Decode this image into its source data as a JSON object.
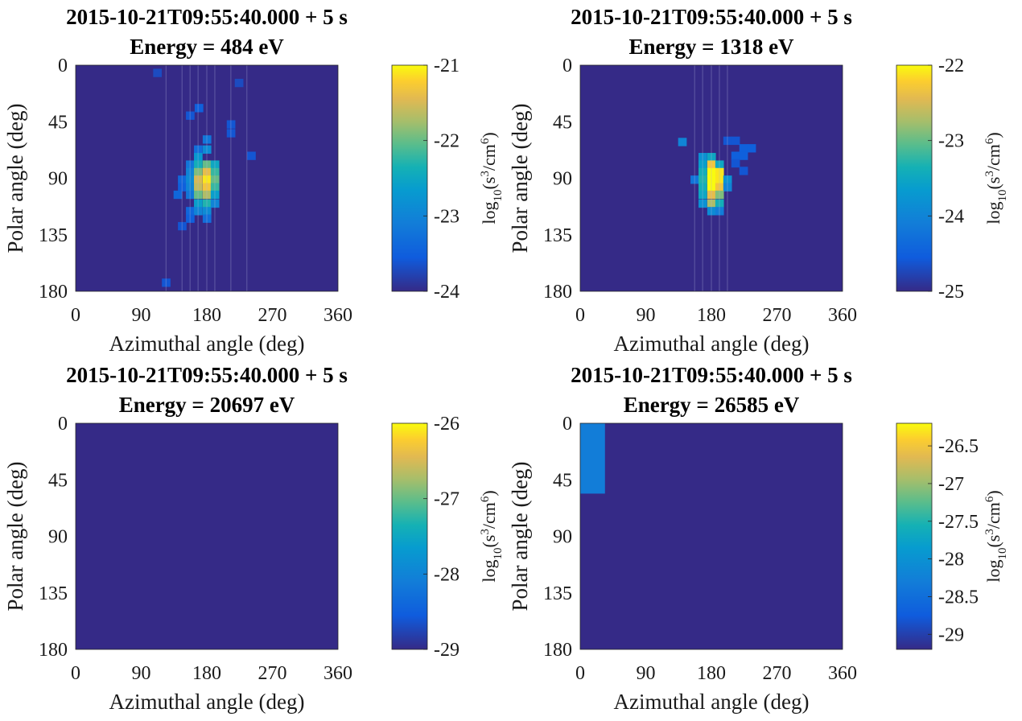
{
  "chart_data": [
    {
      "type": "heatmap",
      "title": "2015-10-21T09:55:40.000 + 5 s",
      "subtitle": "Energy = 484 eV",
      "xlabel": "Azimuthal angle (deg)",
      "ylabel": "Polar angle (deg)",
      "xlim": [
        0,
        360
      ],
      "ylim": [
        0,
        180
      ],
      "xticks": [
        "0",
        "90",
        "180",
        "270",
        "360"
      ],
      "yticks": [
        "0",
        "45",
        "90",
        "135",
        "180"
      ],
      "colorbar": {
        "label_base": "log",
        "label_sub": "10",
        "label_mid": "(s",
        "label_sup1": "3",
        "label_mid2": "/cm",
        "label_sup2": "6",
        "label_end": ")",
        "min": -24,
        "max": -21,
        "ticks": [
          "-21",
          "-22",
          "-23",
          "-24"
        ]
      },
      "background_value": -24,
      "cells": [
        {
          "az": 112,
          "pol": 6,
          "value": -23.7
        },
        {
          "az": 157,
          "pol": 40,
          "value": -23.6
        },
        {
          "az": 169,
          "pol": 34,
          "value": -23.5
        },
        {
          "az": 180,
          "pol": 59,
          "value": -23.2
        },
        {
          "az": 168,
          "pol": 67,
          "value": -23.3
        },
        {
          "az": 168,
          "pol": 73,
          "value": -22.7
        },
        {
          "az": 180,
          "pol": 67,
          "value": -22.9
        },
        {
          "az": 157,
          "pol": 79,
          "value": -23.2
        },
        {
          "az": 168,
          "pol": 79,
          "value": -22.4
        },
        {
          "az": 180,
          "pol": 79,
          "value": -22.0
        },
        {
          "az": 191,
          "pol": 79,
          "value": -22.5
        },
        {
          "az": 157,
          "pol": 85,
          "value": -23.0
        },
        {
          "az": 168,
          "pol": 85,
          "value": -21.9
        },
        {
          "az": 180,
          "pol": 85,
          "value": -21.4
        },
        {
          "az": 191,
          "pol": 85,
          "value": -22.2
        },
        {
          "az": 146,
          "pol": 91,
          "value": -23.4
        },
        {
          "az": 157,
          "pol": 91,
          "value": -22.9
        },
        {
          "az": 168,
          "pol": 91,
          "value": -21.5
        },
        {
          "az": 180,
          "pol": 91,
          "value": -21.1
        },
        {
          "az": 191,
          "pol": 91,
          "value": -22.0
        },
        {
          "az": 146,
          "pol": 97,
          "value": -23.5
        },
        {
          "az": 157,
          "pol": 97,
          "value": -23.0
        },
        {
          "az": 168,
          "pol": 97,
          "value": -21.6
        },
        {
          "az": 180,
          "pol": 97,
          "value": -21.3
        },
        {
          "az": 191,
          "pol": 97,
          "value": -22.2
        },
        {
          "az": 140,
          "pol": 103,
          "value": -23.4
        },
        {
          "az": 157,
          "pol": 103,
          "value": -23.2
        },
        {
          "az": 168,
          "pol": 103,
          "value": -22.0
        },
        {
          "az": 180,
          "pol": 103,
          "value": -21.7
        },
        {
          "az": 191,
          "pol": 103,
          "value": -22.6
        },
        {
          "az": 168,
          "pol": 110,
          "value": -22.6
        },
        {
          "az": 180,
          "pol": 110,
          "value": -22.3
        },
        {
          "az": 191,
          "pol": 110,
          "value": -23.0
        },
        {
          "az": 157,
          "pol": 116,
          "value": -23.4
        },
        {
          "az": 168,
          "pol": 116,
          "value": -23.0
        },
        {
          "az": 180,
          "pol": 116,
          "value": -22.9
        },
        {
          "az": 157,
          "pol": 122,
          "value": -23.5
        },
        {
          "az": 180,
          "pol": 122,
          "value": -23.3
        },
        {
          "az": 146,
          "pol": 128,
          "value": -23.6
        },
        {
          "az": 124,
          "pol": 173,
          "value": -23.6
        },
        {
          "az": 213,
          "pol": 47,
          "value": -23.6
        },
        {
          "az": 213,
          "pol": 54,
          "value": -23.6
        },
        {
          "az": 224,
          "pol": 14,
          "value": -23.7
        },
        {
          "az": 241,
          "pol": 72,
          "value": -23.6
        }
      ]
    },
    {
      "type": "heatmap",
      "title": "2015-10-21T09:55:40.000 + 5 s",
      "subtitle": "Energy = 1318 eV",
      "xlabel": "Azimuthal angle (deg)",
      "ylabel": "Polar angle (deg)",
      "xlim": [
        0,
        360
      ],
      "ylim": [
        0,
        180
      ],
      "xticks": [
        "0",
        "90",
        "180",
        "270",
        "360"
      ],
      "yticks": [
        "0",
        "45",
        "90",
        "135",
        "180"
      ],
      "colorbar": {
        "label_base": "log",
        "label_sub": "10",
        "label_mid": "(s",
        "label_sup1": "3",
        "label_mid2": "/cm",
        "label_sup2": "6",
        "label_end": ")",
        "min": -25,
        "max": -22,
        "ticks": [
          "-22",
          "-23",
          "-24",
          "-25"
        ]
      },
      "background_value": -25,
      "cells": [
        {
          "az": 140,
          "pol": 61,
          "value": -24.0
        },
        {
          "az": 168,
          "pol": 73,
          "value": -23.8
        },
        {
          "az": 180,
          "pol": 73,
          "value": -23.5
        },
        {
          "az": 168,
          "pol": 79,
          "value": -23.6
        },
        {
          "az": 180,
          "pol": 79,
          "value": -22.3
        },
        {
          "az": 191,
          "pol": 79,
          "value": -23.5
        },
        {
          "az": 168,
          "pol": 85,
          "value": -23.4
        },
        {
          "az": 180,
          "pol": 85,
          "value": -22.0
        },
        {
          "az": 191,
          "pol": 85,
          "value": -22.1
        },
        {
          "az": 157,
          "pol": 91,
          "value": -24.2
        },
        {
          "az": 168,
          "pol": 91,
          "value": -23.3
        },
        {
          "az": 180,
          "pol": 91,
          "value": -22.0
        },
        {
          "az": 191,
          "pol": 91,
          "value": -22.1
        },
        {
          "az": 202,
          "pol": 91,
          "value": -23.8
        },
        {
          "az": 168,
          "pol": 97,
          "value": -23.4
        },
        {
          "az": 180,
          "pol": 97,
          "value": -22.0
        },
        {
          "az": 191,
          "pol": 97,
          "value": -22.3
        },
        {
          "az": 202,
          "pol": 97,
          "value": -24.0
        },
        {
          "az": 168,
          "pol": 103,
          "value": -23.5
        },
        {
          "az": 180,
          "pol": 103,
          "value": -22.4
        },
        {
          "az": 191,
          "pol": 103,
          "value": -22.9
        },
        {
          "az": 168,
          "pol": 110,
          "value": -23.8
        },
        {
          "az": 180,
          "pol": 110,
          "value": -22.7
        },
        {
          "az": 191,
          "pol": 110,
          "value": -23.4
        },
        {
          "az": 180,
          "pol": 116,
          "value": -23.9
        },
        {
          "az": 191,
          "pol": 116,
          "value": -24.1
        },
        {
          "az": 202,
          "pol": 60,
          "value": -24.6
        },
        {
          "az": 213,
          "pol": 60,
          "value": -24.6
        },
        {
          "az": 224,
          "pol": 66,
          "value": -24.5
        },
        {
          "az": 235,
          "pol": 66,
          "value": -24.5
        },
        {
          "az": 213,
          "pol": 72,
          "value": -24.5
        },
        {
          "az": 224,
          "pol": 72,
          "value": -24.5
        },
        {
          "az": 213,
          "pol": 78,
          "value": -24.6
        },
        {
          "az": 224,
          "pol": 84,
          "value": -24.6
        }
      ]
    },
    {
      "type": "heatmap",
      "title": "2015-10-21T09:55:40.000 + 5 s",
      "subtitle": "Energy = 20697 eV",
      "xlabel": "Azimuthal angle (deg)",
      "ylabel": "Polar angle (deg)",
      "xlim": [
        0,
        360
      ],
      "ylim": [
        0,
        180
      ],
      "xticks": [
        "0",
        "90",
        "180",
        "270",
        "360"
      ],
      "yticks": [
        "0",
        "45",
        "90",
        "135",
        "180"
      ],
      "colorbar": {
        "label_base": "log",
        "label_sub": "10",
        "label_mid": "(s",
        "label_sup1": "3",
        "label_mid2": "/cm",
        "label_sup2": "6",
        "label_end": ")",
        "min": -29,
        "max": -26,
        "ticks": [
          "-26",
          "-27",
          "-28",
          "-29"
        ]
      },
      "background_value": -29,
      "cells": []
    },
    {
      "type": "heatmap",
      "title": "2015-10-21T09:55:40.000 + 5 s",
      "subtitle": "Energy = 26585 eV",
      "xlabel": "Azimuthal angle (deg)",
      "ylabel": "Polar angle (deg)",
      "xlim": [
        0,
        360
      ],
      "ylim": [
        0,
        180
      ],
      "xticks": [
        "0",
        "90",
        "180",
        "270",
        "360"
      ],
      "yticks": [
        "0",
        "45",
        "90",
        "135",
        "180"
      ],
      "colorbar": {
        "label_base": "log",
        "label_sub": "10",
        "label_mid": "(s",
        "label_sup1": "3",
        "label_mid2": "/cm",
        "label_sup2": "6",
        "label_end": ")",
        "min": -29.2,
        "max": -26.2,
        "ticks": [
          "-26.5",
          "-27",
          "-27.5",
          "-28",
          "-28.5",
          "-29"
        ],
        "tick_values": [
          -26.5,
          -27,
          -27.5,
          -28,
          -28.5,
          -29
        ]
      },
      "background_value": -29.2,
      "rects": [
        {
          "az0": 0,
          "az1": 34,
          "pol0": 0,
          "pol1": 56,
          "value": -28.3
        }
      ]
    }
  ]
}
